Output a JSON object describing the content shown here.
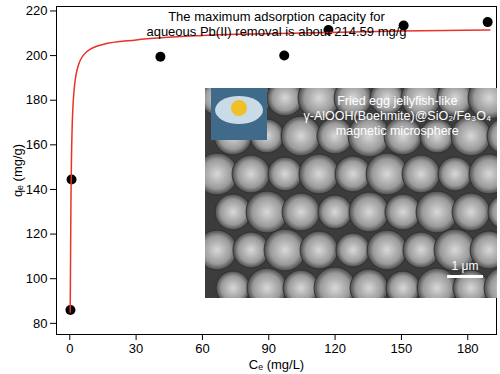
{
  "chart_data": {
    "type": "scatter",
    "x_label": "Cₑ (mg/L)",
    "y_label": "qₑ (mg/g)",
    "xlim": [
      -6,
      193
    ],
    "ylim": [
      75,
      222
    ],
    "xticks": [
      0,
      30,
      60,
      90,
      120,
      150,
      180
    ],
    "yticks": [
      80,
      100,
      120,
      140,
      160,
      180,
      200,
      220
    ],
    "grid": false,
    "annotation": [
      "The maximum adsorption capacity for",
      "aqueous Pb(II) removal is about 214.59 mg/g"
    ],
    "inset": {
      "caption": [
        "Fried egg jellyfish-like",
        "γ-AlOOH(Boehmite)@SiO₂/Fe₃O₄",
        "magnetic microsphere"
      ],
      "scale_bar": "1 μm"
    },
    "series": [
      {
        "type": "scatter",
        "marker": "circle",
        "color": "#000000",
        "x": [
          0.3,
          0.8,
          41,
          97,
          117,
          151,
          189
        ],
        "values": [
          86,
          144.5,
          199.5,
          200,
          211.5,
          213.5,
          215
        ]
      },
      {
        "type": "line",
        "line_style": "solid",
        "color": "#e8322a",
        "x": [
          0.2,
          0.5,
          1,
          2,
          4,
          8,
          15,
          30,
          60,
          100,
          150,
          190
        ],
        "values": [
          85,
          130,
          165,
          185,
          196,
          202,
          205,
          207,
          209,
          210,
          211,
          211.5
        ]
      }
    ]
  }
}
